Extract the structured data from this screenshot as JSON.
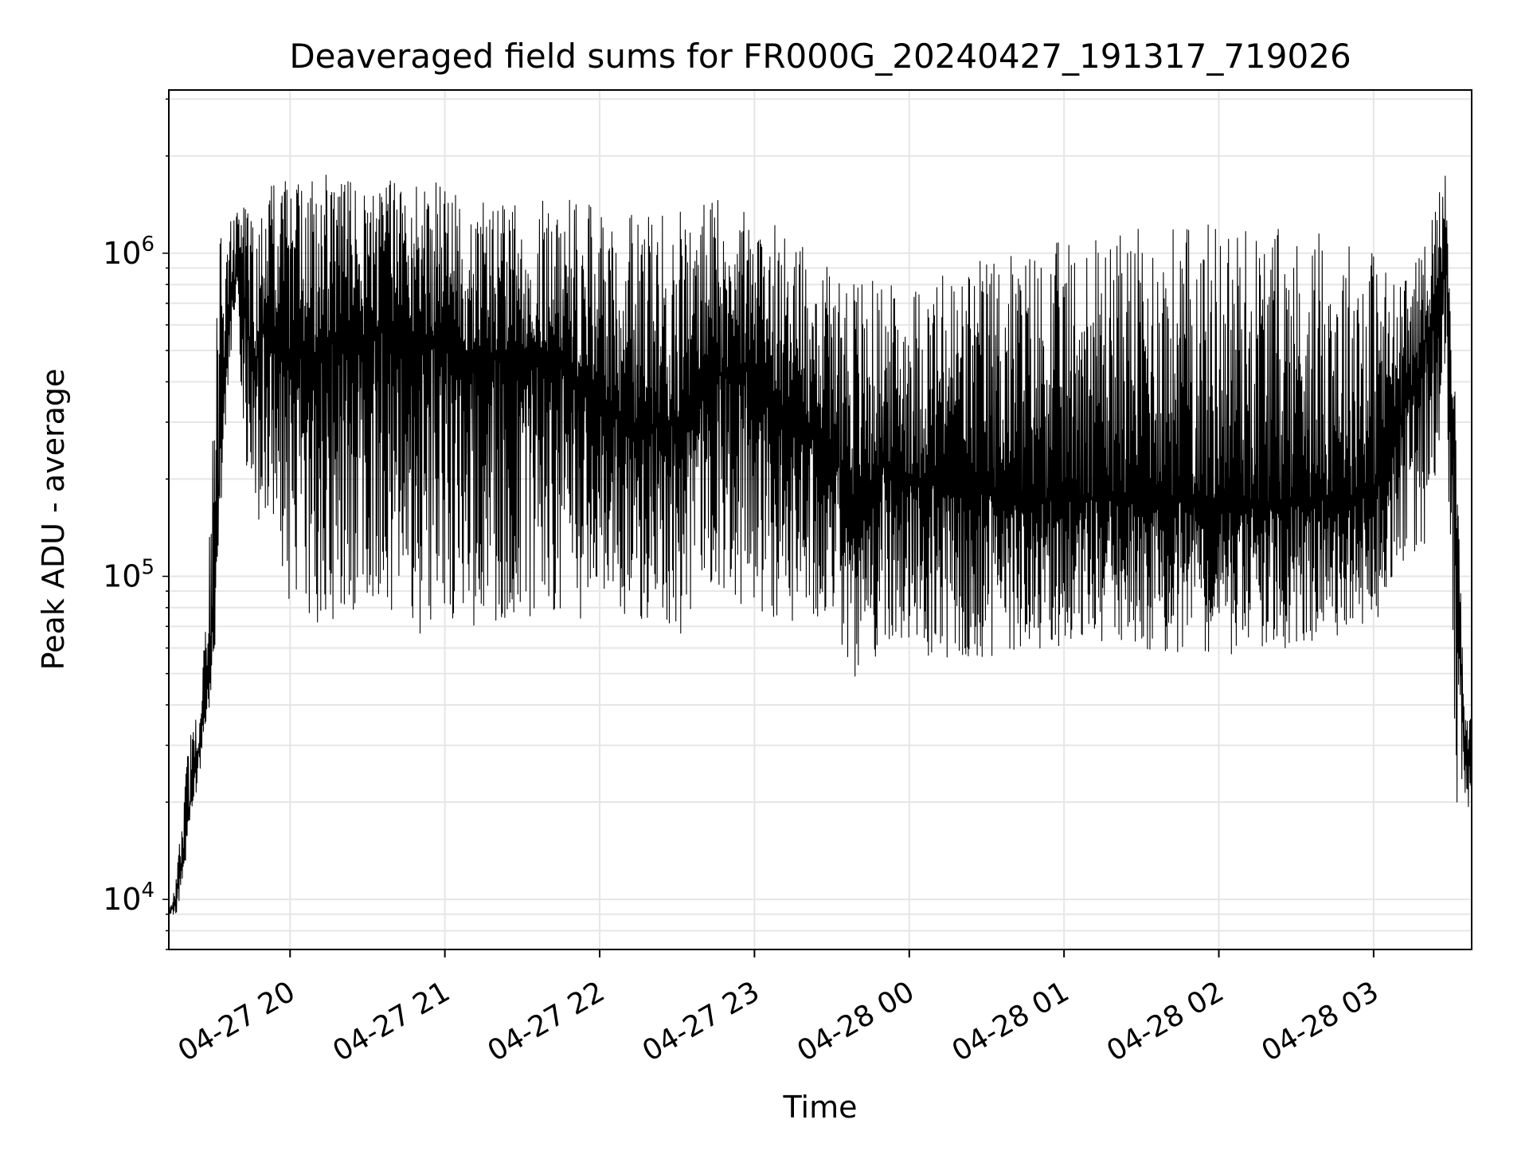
{
  "chart_data": {
    "type": "line",
    "title": "Deaveraged field sums for FR000G_20240427_191317_719026",
    "xlabel": "Time",
    "ylabel": "Peak ADU - average",
    "yscale": "log",
    "ylim": [
      7000,
      3200000
    ],
    "xlim": [
      "2024-04-27 19:13",
      "2024-04-28 03:38"
    ],
    "grid": true,
    "legend": "none",
    "x_ticks": [
      {
        "label": "04-27 20",
        "time": "2024-04-27 20:00"
      },
      {
        "label": "04-27 21",
        "time": "2024-04-27 21:00"
      },
      {
        "label": "04-27 22",
        "time": "2024-04-27 22:00"
      },
      {
        "label": "04-27 23",
        "time": "2024-04-27 23:00"
      },
      {
        "label": "04-28 00",
        "time": "2024-04-28 00:00"
      },
      {
        "label": "04-28 01",
        "time": "2024-04-28 01:00"
      },
      {
        "label": "04-28 02",
        "time": "2024-04-28 02:00"
      },
      {
        "label": "04-28 03",
        "time": "2024-04-28 03:00"
      }
    ],
    "y_ticks": [
      {
        "value": 10000,
        "base": "10",
        "exp": "4"
      },
      {
        "value": 100000,
        "base": "10",
        "exp": "5"
      },
      {
        "value": 1000000,
        "base": "10",
        "exp": "6"
      }
    ],
    "series": [
      {
        "color": "#000000",
        "x": [
          "2024-04-27 19:13",
          "2024-04-27 19:16",
          "2024-04-27 19:19",
          "2024-04-27 19:22",
          "2024-04-27 19:25",
          "2024-04-27 19:28",
          "2024-04-27 19:31",
          "2024-04-27 19:33",
          "2024-04-27 19:35",
          "2024-04-27 19:37",
          "2024-04-27 19:40",
          "2024-04-27 19:43",
          "2024-04-27 19:46",
          "2024-04-27 19:48",
          "2024-04-27 19:51",
          "2024-04-27 19:54",
          "2024-04-27 19:57",
          "2024-04-27 20:00",
          "2024-04-27 20:05",
          "2024-04-27 20:10",
          "2024-04-27 20:15",
          "2024-04-27 20:20",
          "2024-04-27 20:30",
          "2024-04-27 20:40",
          "2024-04-27 20:50",
          "2024-04-27 21:00",
          "2024-04-27 21:15",
          "2024-04-27 21:30",
          "2024-04-27 21:45",
          "2024-04-27 22:00",
          "2024-04-27 22:15",
          "2024-04-27 22:30",
          "2024-04-27 22:45",
          "2024-04-27 23:00",
          "2024-04-27 23:15",
          "2024-04-27 23:30",
          "2024-04-27 23:40",
          "2024-04-27 23:50",
          "2024-04-28 00:00",
          "2024-04-28 00:30",
          "2024-04-28 01:00",
          "2024-04-28 01:30",
          "2024-04-28 02:00",
          "2024-04-28 02:30",
          "2024-04-28 03:00",
          "2024-04-28 03:10",
          "2024-04-28 03:18",
          "2024-04-28 03:24",
          "2024-04-28 03:28",
          "2024-04-28 03:30",
          "2024-04-28 03:32",
          "2024-04-28 03:35",
          "2024-04-28 03:38"
        ],
        "y": [
          9000,
          10000,
          15000,
          22000,
          30000,
          45000,
          90000,
          250000,
          420000,
          700000,
          900000,
          650000,
          400000,
          500000,
          650000,
          550000,
          500000,
          480000,
          500000,
          480000,
          520000,
          600000,
          550000,
          600000,
          560000,
          520000,
          480000,
          500000,
          470000,
          350000,
          280000,
          300000,
          420000,
          450000,
          300000,
          250000,
          150000,
          220000,
          200000,
          180000,
          170000,
          180000,
          160000,
          170000,
          180000,
          300000,
          450000,
          700000,
          1000000,
          400000,
          150000,
          30000,
          28000
        ],
        "upper_envelope": [
          9000,
          12000,
          25000,
          35000,
          40000,
          100000,
          600000,
          1200000,
          1200000,
          1500000,
          1400000,
          1500000,
          1500000,
          1500000,
          1600000,
          1700000,
          1800000,
          1600000,
          1700000,
          1800000,
          1800000,
          1700000,
          1600000,
          1700000,
          1800000,
          1600000,
          1500000,
          1400000,
          1500000,
          1400000,
          1300000,
          1400000,
          1500000,
          1300000,
          1200000,
          1000000,
          900000,
          800000,
          800000,
          1000000,
          1100000,
          1200000,
          1300000,
          1200000,
          1100000,
          800000,
          1000000,
          1500000,
          1800000,
          1200000,
          300000,
          40000,
          40000
        ],
        "lower_envelope": [
          9000,
          9000,
          12000,
          18000,
          25000,
          35000,
          60000,
          150000,
          300000,
          500000,
          350000,
          200000,
          130000,
          120000,
          100000,
          90000,
          85000,
          80000,
          75000,
          70000,
          65000,
          70000,
          75000,
          70000,
          65000,
          70000,
          70000,
          70000,
          75000,
          70000,
          70000,
          65000,
          80000,
          80000,
          70000,
          70000,
          45000,
          60000,
          55000,
          55000,
          60000,
          60000,
          55000,
          60000,
          70000,
          100000,
          100000,
          180000,
          300000,
          100000,
          20000,
          18000,
          18000
        ]
      }
    ]
  }
}
